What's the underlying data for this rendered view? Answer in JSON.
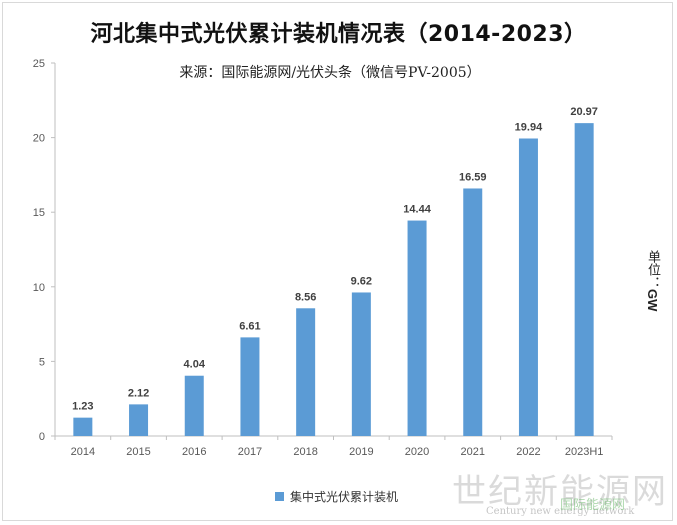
{
  "chart_data": {
    "type": "bar",
    "title": "河北集中式光伏累计装机情况表（2014-2023）",
    "subtitle": "来源：国际能源网/光伏头条（微信号PV-2005）",
    "unit_label": "单位：",
    "unit_value": "GW",
    "categories": [
      "2014",
      "2015",
      "2016",
      "2017",
      "2018",
      "2019",
      "2020",
      "2021",
      "2022",
      "2023H1"
    ],
    "series": [
      {
        "name": "集中式光伏累计装机",
        "values": [
          1.23,
          2.12,
          4.04,
          6.61,
          8.56,
          9.62,
          14.44,
          16.59,
          19.94,
          20.97
        ]
      }
    ],
    "data_labels": [
      "1.23",
      "2.12",
      "4.04",
      "6.61",
      "8.56",
      "9.62",
      "14.44",
      "16.59",
      "19.94",
      "20.97"
    ],
    "yticks": [
      "0",
      "5",
      "10",
      "15",
      "20",
      "25"
    ],
    "ylim": [
      0,
      25
    ],
    "legend_position": "bottom",
    "bar_color": "#5b9bd5"
  },
  "watermark": {
    "main": "世纪新能源网",
    "sub": "Century new energy network",
    "overlay": "国际能源网"
  }
}
